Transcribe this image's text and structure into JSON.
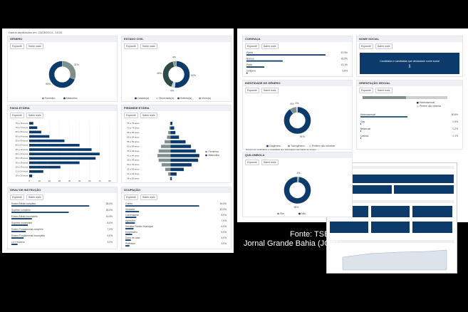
{
  "updated": "Dados atualizados em: 23/08/2024 - 18:00",
  "buttons": [
    "Expandir",
    "Saber mais"
  ],
  "source": "Fonte: TSE",
  "credit": "Jornal Grande Bahia (JGB)",
  "panels": [
    {
      "title": "GÊNERO",
      "type": "donut",
      "categories": [
        "Feminino",
        "Masculino"
      ],
      "values": [
        31,
        69
      ],
      "value_labels": [
        "31%",
        "69%"
      ],
      "colors": [
        "#7f8f8c",
        "#0b3a6b"
      ]
    },
    {
      "title": "ESTADO CIVIL",
      "type": "donut",
      "categories": [
        "Casado(a)",
        "Divorciado(a)",
        "Solteiro(a)",
        "Viúvo(a)"
      ],
      "values": [
        52,
        4,
        40,
        4
      ],
      "value_labels": [
        "52%",
        "4%",
        "40%",
        "4%"
      ],
      "colors": [
        "#0b3a6b",
        "#c9cfd3",
        "#2e4a48",
        "#8a9696"
      ]
    },
    {
      "title": "FAIXA ETÁRIA",
      "type": "hbar",
      "color": "#0b3a6b",
      "categories": [
        "75 a 79 anos",
        "70 a 74 anos",
        "65 a 69 anos",
        "60 a 64 anos",
        "55 a 59 anos",
        "50 a 54 anos",
        "45 a 49 anos",
        "40 a 44 anos",
        "35 a 39 anos",
        "30 a 34 anos",
        "25 a 29 anos",
        "21 a 24 anos",
        "18 a 20 anos"
      ],
      "values": [
        4,
        8,
        12,
        20,
        35,
        50,
        62,
        70,
        66,
        50,
        31,
        14,
        3
      ],
      "xlim": [
        0,
        80
      ],
      "xticks": [
        0,
        10,
        20,
        30,
        40,
        50,
        60,
        70,
        80
      ]
    },
    {
      "title": "PIRÂMIDE ETÁRIA",
      "type": "pyramid",
      "categories": [
        "75 a 79 anos",
        "70 a 74 anos",
        "65 a 69 anos",
        "60 a 64 anos",
        "55 a 59 anos",
        "50 a 54 anos",
        "45 a 49 anos",
        "40 a 44 anos",
        "35 a 39 anos",
        "30 a 34 anos",
        "25 a 29 anos",
        "21 a 24 anos",
        "18 a 20 anos"
      ],
      "xlim": [
        0,
        50
      ],
      "series": [
        {
          "name": "Feminino",
          "color": "#7f8f8c",
          "values": [
            1,
            2,
            4,
            6,
            10,
            16,
            20,
            22,
            20,
            15,
            9,
            4,
            1
          ]
        },
        {
          "name": "Masculino",
          "color": "#0b3a6b",
          "values": [
            3,
            6,
            8,
            14,
            25,
            34,
            42,
            48,
            46,
            35,
            22,
            10,
            2
          ]
        }
      ]
    },
    {
      "title": "GRAU DE INSTRUÇÃO",
      "type": "list",
      "color": "#0b3a6b",
      "xlim": [
        0,
        40
      ],
      "categories": [
        "Ensino Médio completo",
        "Superior completo",
        "Ensino Médio incompleto",
        "Superior incompleto",
        "Ensino Fundamental completo",
        "Ensino Fundamental incompleto",
        "Lê e escreve"
      ],
      "values": [
        38,
        28,
        10,
        8,
        7,
        6,
        3
      ],
      "value_labels": [
        "38,0%",
        "28,0%",
        "10,0%",
        "8,0%",
        "7,0%",
        "6,0%",
        "3,0%"
      ]
    },
    {
      "title": "OCUPAÇÃO",
      "type": "list",
      "color": "#0b3a6b",
      "xlim": [
        0,
        60
      ],
      "categories": [
        "Outros",
        "Vereador",
        "Comerciante",
        "Agricultor",
        "Servidor Público Municipal",
        "Empresário",
        "Dona de casa",
        "Professor"
      ],
      "values": [
        54,
        10,
        8,
        7,
        6,
        5,
        4,
        3
      ],
      "value_labels": [
        "54,0%",
        "10,0%",
        "8,0%",
        "7,0%",
        "6,0%",
        "5,0%",
        "4,0%",
        "3,0%"
      ]
    },
    {
      "title": "COR/RAÇA",
      "type": "list",
      "color": "#0b3a6b",
      "xlim": [
        0,
        60
      ],
      "categories": [
        "Parda",
        "Branca",
        "Preta",
        "Indígena"
      ],
      "values": [
        57.9,
        26.5,
        13.1,
        0.8
      ],
      "value_labels": [
        "57,9%",
        "26,5%",
        "13,1%",
        "0,8%"
      ]
    },
    {
      "title": "NOME SOCIAL",
      "type": "box",
      "text": "Candidatos e candidatas que declararam nome social",
      "value": 1
    },
    {
      "title": "IDENTIDADE DE GÊNERO",
      "type": "donut",
      "categories": [
        "Cisgênero",
        "Transgênero",
        "Prefere não informar"
      ],
      "values": [
        91,
        8,
        1
      ],
      "value_labels": [
        "91%",
        "8%",
        "1%"
      ],
      "colors": [
        "#0b3a6b",
        "#7f8f8c",
        "#c9cfd3"
      ],
      "note": "Número de candidatos e candidatas que declararam identidade de gênero"
    },
    {
      "title": "ORIENTAÇÃO SEXUAL",
      "type": "stack",
      "xlim": [
        0,
        100
      ],
      "series": [
        {
          "name": "Heterossexual",
          "color": "#7f8f8c",
          "values": [
            50.8
          ]
        },
        {
          "name": "Prefere não informar",
          "color": "#c9cfd3",
          "values": [
            48.4
          ]
        }
      ],
      "categories": [
        "Heterossexual",
        "Gay",
        "Bissexual",
        "Lésbica"
      ],
      "values": [
        50.8,
        0.5,
        0.2,
        0.1
      ],
      "value_labels": [
        "50,8%",
        "0,5%",
        "0,2%",
        "0,1%"
      ],
      "color": "#0b3a6b"
    },
    {
      "title": "QUILOMBOLA",
      "type": "donut",
      "categories": [
        "Sim",
        "Não"
      ],
      "values": [
        2,
        98
      ],
      "value_labels": [
        "2%",
        "98%"
      ],
      "colors": [
        "#7f8f8c",
        "#0b3a6b"
      ]
    }
  ]
}
